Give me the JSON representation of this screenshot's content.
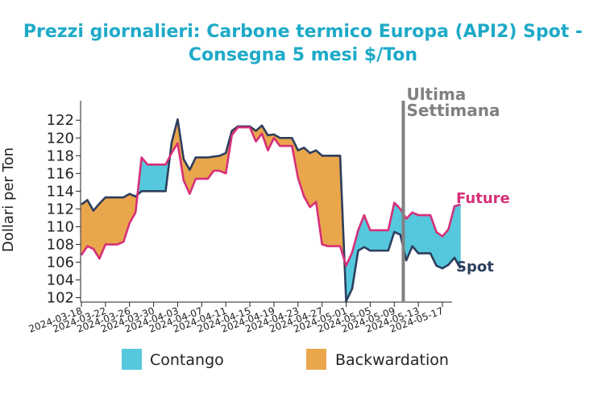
{
  "chart_data": {
    "type": "line",
    "title_line1": "Prezzi giornalieri: Carbone termico Europa (API2) Spot -",
    "title_line2": "Consegna 5 mesi $/Ton",
    "ylabel": "Dollari per Ton",
    "xlabel": "",
    "ylim": [
      101.5,
      124.2
    ],
    "yticks": [
      102,
      104,
      106,
      108,
      110,
      112,
      114,
      116,
      118,
      120,
      122
    ],
    "xticks": [
      "2024-03-18",
      "2024-03-22",
      "2024-03-26",
      "2024-03-30",
      "2024-04-03",
      "2024-04-07",
      "2024-04-11",
      "2024-04-15",
      "2024-04-19",
      "2024-04-23",
      "2024-04-27",
      "2024-05-01",
      "2024-05-05",
      "2024-05-09",
      "2024-05-13",
      "2024-05-17"
    ],
    "x_start": "2024-03-18",
    "x_end": "2024-05-17",
    "annotation": {
      "line1": "Ultima",
      "line2": "Settimana",
      "date": "2024-05-10T12:00"
    },
    "series": [
      {
        "name": "Future",
        "color": "#d62f78",
        "points": [
          [
            "2024-03-18",
            106.8
          ],
          [
            "2024-03-19",
            107.8
          ],
          [
            "2024-03-20",
            107.5
          ],
          [
            "2024-03-21",
            106.4
          ],
          [
            "2024-03-22",
            108.0
          ],
          [
            "2024-03-23",
            108.0
          ],
          [
            "2024-03-24",
            108.0
          ],
          [
            "2024-03-25",
            108.3
          ],
          [
            "2024-03-26",
            110.4
          ],
          [
            "2024-03-27",
            111.6
          ],
          [
            "2024-03-28",
            117.8
          ],
          [
            "2024-03-29",
            117.0
          ],
          [
            "2024-03-30",
            117.0
          ],
          [
            "2024-03-31",
            117.0
          ],
          [
            "2024-04-01",
            117.0
          ],
          [
            "2024-04-02",
            118.3
          ],
          [
            "2024-04-03",
            119.4
          ],
          [
            "2024-04-04",
            115.2
          ],
          [
            "2024-04-05",
            113.7
          ],
          [
            "2024-04-06",
            115.4
          ],
          [
            "2024-04-07",
            115.4
          ],
          [
            "2024-04-08",
            115.4
          ],
          [
            "2024-04-09",
            116.3
          ],
          [
            "2024-04-10",
            116.3
          ],
          [
            "2024-04-11",
            116.0
          ],
          [
            "2024-04-12",
            120.3
          ],
          [
            "2024-04-13",
            121.2
          ],
          [
            "2024-04-14",
            121.2
          ],
          [
            "2024-04-15",
            121.2
          ],
          [
            "2024-04-16",
            119.6
          ],
          [
            "2024-04-17",
            120.5
          ],
          [
            "2024-04-18",
            118.6
          ],
          [
            "2024-04-19",
            120.0
          ],
          [
            "2024-04-20",
            119.1
          ],
          [
            "2024-04-21",
            119.1
          ],
          [
            "2024-04-22",
            119.1
          ],
          [
            "2024-04-23",
            115.5
          ],
          [
            "2024-04-24",
            113.4
          ],
          [
            "2024-04-25",
            112.2
          ],
          [
            "2024-04-26",
            112.8
          ],
          [
            "2024-04-27",
            108.0
          ],
          [
            "2024-04-28",
            107.8
          ],
          [
            "2024-04-29",
            107.8
          ],
          [
            "2024-04-30",
            107.8
          ],
          [
            "2024-05-01",
            105.6
          ],
          [
            "2024-05-02",
            107.1
          ],
          [
            "2024-05-03",
            109.6
          ],
          [
            "2024-05-04",
            111.3
          ],
          [
            "2024-05-05",
            109.6
          ],
          [
            "2024-05-06",
            109.6
          ],
          [
            "2024-05-07",
            109.6
          ],
          [
            "2024-05-08",
            109.6
          ],
          [
            "2024-05-09",
            112.7
          ],
          [
            "2024-05-10",
            112.0
          ],
          [
            "2024-05-11",
            110.9
          ],
          [
            "2024-05-12",
            111.6
          ],
          [
            "2024-05-13",
            111.3
          ],
          [
            "2024-05-14",
            111.3
          ],
          [
            "2024-05-15",
            111.3
          ],
          [
            "2024-05-16",
            109.4
          ],
          [
            "2024-05-17",
            108.9
          ],
          [
            "2024-05-18",
            109.7
          ],
          [
            "2024-05-19",
            112.3
          ],
          [
            "2024-05-20",
            112.5
          ]
        ]
      },
      {
        "name": "Spot",
        "color": "#2d3e5e",
        "points": [
          [
            "2024-03-18",
            112.5
          ],
          [
            "2024-03-19",
            113.0
          ],
          [
            "2024-03-20",
            111.8
          ],
          [
            "2024-03-21",
            112.6
          ],
          [
            "2024-03-22",
            113.3
          ],
          [
            "2024-03-23",
            113.3
          ],
          [
            "2024-03-24",
            113.3
          ],
          [
            "2024-03-25",
            113.3
          ],
          [
            "2024-03-26",
            113.7
          ],
          [
            "2024-03-27",
            113.4
          ],
          [
            "2024-03-28",
            114.0
          ],
          [
            "2024-03-29",
            114.0
          ],
          [
            "2024-03-30",
            114.0
          ],
          [
            "2024-03-31",
            114.0
          ],
          [
            "2024-04-01",
            114.0
          ],
          [
            "2024-04-02",
            119.5
          ],
          [
            "2024-04-03",
            122.1
          ],
          [
            "2024-04-04",
            117.6
          ],
          [
            "2024-04-05",
            116.4
          ],
          [
            "2024-04-06",
            117.8
          ],
          [
            "2024-04-07",
            117.8
          ],
          [
            "2024-04-08",
            117.8
          ],
          [
            "2024-04-09",
            117.9
          ],
          [
            "2024-04-10",
            118.0
          ],
          [
            "2024-04-11",
            118.3
          ],
          [
            "2024-04-12",
            120.8
          ],
          [
            "2024-04-13",
            121.3
          ],
          [
            "2024-04-14",
            121.3
          ],
          [
            "2024-04-15",
            121.3
          ],
          [
            "2024-04-16",
            120.8
          ],
          [
            "2024-04-17",
            121.4
          ],
          [
            "2024-04-18",
            120.3
          ],
          [
            "2024-04-19",
            120.4
          ],
          [
            "2024-04-20",
            120.0
          ],
          [
            "2024-04-21",
            120.0
          ],
          [
            "2024-04-22",
            120.0
          ],
          [
            "2024-04-23",
            118.6
          ],
          [
            "2024-04-24",
            118.9
          ],
          [
            "2024-04-25",
            118.3
          ],
          [
            "2024-04-26",
            118.6
          ],
          [
            "2024-04-27",
            118.0
          ],
          [
            "2024-04-28",
            118.0
          ],
          [
            "2024-04-29",
            118.0
          ],
          [
            "2024-04-30",
            118.0
          ],
          [
            "2024-05-01",
            101.6
          ],
          [
            "2024-05-02",
            103.0
          ],
          [
            "2024-05-03",
            107.3
          ],
          [
            "2024-05-04",
            107.7
          ],
          [
            "2024-05-05",
            107.3
          ],
          [
            "2024-05-06",
            107.3
          ],
          [
            "2024-05-07",
            107.3
          ],
          [
            "2024-05-08",
            107.3
          ],
          [
            "2024-05-09",
            109.4
          ],
          [
            "2024-05-10",
            109.1
          ],
          [
            "2024-05-11",
            106.2
          ],
          [
            "2024-05-12",
            107.8
          ],
          [
            "2024-05-13",
            107.0
          ],
          [
            "2024-05-14",
            107.0
          ],
          [
            "2024-05-15",
            107.0
          ],
          [
            "2024-05-16",
            105.6
          ],
          [
            "2024-05-17",
            105.3
          ],
          [
            "2024-05-18",
            105.7
          ],
          [
            "2024-05-19",
            106.5
          ],
          [
            "2024-05-20",
            105.3
          ]
        ]
      }
    ],
    "fill_contango": {
      "label": "Contango",
      "color": "#55c8dd"
    },
    "fill_backwardation": {
      "label": "Backwardation",
      "color": "#eaa64b"
    },
    "annotation_color": "#808080",
    "legend_position": "bottom",
    "grid": false
  }
}
